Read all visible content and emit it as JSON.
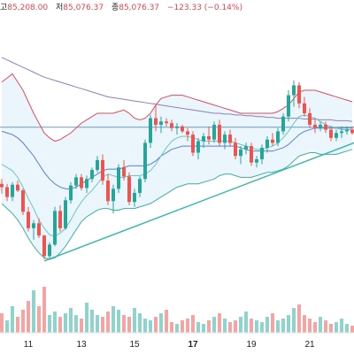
{
  "header": {
    "high_label": "고",
    "high_value": "85,208.00",
    "low_label": "저",
    "low_value": "85,076.37",
    "close_label": "종",
    "close_value": "85,076.37",
    "change": "−123.33 (−0.14%)"
  },
  "colors": {
    "up": "#26a69a",
    "down": "#ef5350",
    "volume_up": "#8ed4cc",
    "volume_down": "#f5a4a4",
    "band_upper": "#e24a5b",
    "band_lower": "#3db0a0",
    "band_fill": "#e8f3fb",
    "ma_slow": "#8c7fbf",
    "ma_mid": "#5b7fd6",
    "ma_fast": "#6dc7b8",
    "trendline": "#3bb8b0",
    "horizontal_line": "#6b9ad6",
    "axis_text": "#222222"
  },
  "chart_data": {
    "type": "candlestick",
    "x_tick_labels": [
      "11",
      "13",
      "15",
      "17",
      "19",
      "21"
    ],
    "candles": [
      {
        "t": 0,
        "o": 176,
        "h": 182,
        "l": 164,
        "c": 172
      },
      {
        "t": 1,
        "o": 172,
        "h": 176,
        "l": 155,
        "c": 160
      },
      {
        "t": 2,
        "o": 160,
        "h": 178,
        "l": 155,
        "c": 175
      },
      {
        "t": 3,
        "o": 175,
        "h": 180,
        "l": 166,
        "c": 168
      },
      {
        "t": 4,
        "o": 168,
        "h": 170,
        "l": 138,
        "c": 142
      },
      {
        "t": 5,
        "o": 142,
        "h": 148,
        "l": 118,
        "c": 122
      },
      {
        "t": 6,
        "o": 122,
        "h": 132,
        "l": 108,
        "c": 128
      },
      {
        "t": 7,
        "o": 128,
        "h": 134,
        "l": 110,
        "c": 113
      },
      {
        "t": 8,
        "o": 113,
        "h": 114,
        "l": 84,
        "c": 88
      },
      {
        "t": 9,
        "o": 88,
        "h": 105,
        "l": 85,
        "c": 102
      },
      {
        "t": 10,
        "o": 102,
        "h": 148,
        "l": 100,
        "c": 143
      },
      {
        "t": 11,
        "o": 143,
        "h": 150,
        "l": 118,
        "c": 122
      },
      {
        "t": 12,
        "o": 122,
        "h": 160,
        "l": 120,
        "c": 156
      },
      {
        "t": 13,
        "o": 156,
        "h": 178,
        "l": 152,
        "c": 174
      },
      {
        "t": 14,
        "o": 174,
        "h": 188,
        "l": 170,
        "c": 184
      },
      {
        "t": 15,
        "o": 184,
        "h": 188,
        "l": 168,
        "c": 171
      },
      {
        "t": 16,
        "o": 171,
        "h": 186,
        "l": 165,
        "c": 182
      },
      {
        "t": 17,
        "o": 182,
        "h": 196,
        "l": 178,
        "c": 193
      },
      {
        "t": 18,
        "o": 193,
        "h": 210,
        "l": 190,
        "c": 205
      },
      {
        "t": 19,
        "o": 205,
        "h": 212,
        "l": 175,
        "c": 180
      },
      {
        "t": 20,
        "o": 180,
        "h": 188,
        "l": 150,
        "c": 155
      },
      {
        "t": 21,
        "o": 155,
        "h": 175,
        "l": 140,
        "c": 170
      },
      {
        "t": 22,
        "o": 170,
        "h": 200,
        "l": 165,
        "c": 196
      },
      {
        "t": 23,
        "o": 196,
        "h": 205,
        "l": 180,
        "c": 185
      },
      {
        "t": 24,
        "o": 185,
        "h": 190,
        "l": 150,
        "c": 154
      },
      {
        "t": 25,
        "o": 154,
        "h": 170,
        "l": 148,
        "c": 165
      },
      {
        "t": 26,
        "o": 165,
        "h": 185,
        "l": 160,
        "c": 182
      },
      {
        "t": 27,
        "o": 182,
        "h": 230,
        "l": 178,
        "c": 226
      },
      {
        "t": 28,
        "o": 226,
        "h": 260,
        "l": 220,
        "c": 256
      },
      {
        "t": 29,
        "o": 256,
        "h": 272,
        "l": 240,
        "c": 248
      },
      {
        "t": 30,
        "o": 248,
        "h": 258,
        "l": 238,
        "c": 252
      },
      {
        "t": 31,
        "o": 252,
        "h": 256,
        "l": 246,
        "c": 250
      },
      {
        "t": 32,
        "o": 250,
        "h": 254,
        "l": 240,
        "c": 244
      },
      {
        "t": 33,
        "o": 244,
        "h": 250,
        "l": 236,
        "c": 246
      },
      {
        "t": 34,
        "o": 246,
        "h": 248,
        "l": 238,
        "c": 240
      },
      {
        "t": 35,
        "o": 240,
        "h": 244,
        "l": 228,
        "c": 236
      },
      {
        "t": 36,
        "o": 236,
        "h": 240,
        "l": 210,
        "c": 214
      },
      {
        "t": 37,
        "o": 214,
        "h": 232,
        "l": 206,
        "c": 228
      },
      {
        "t": 38,
        "o": 228,
        "h": 238,
        "l": 220,
        "c": 234
      },
      {
        "t": 39,
        "o": 234,
        "h": 246,
        "l": 224,
        "c": 230
      },
      {
        "t": 40,
        "o": 230,
        "h": 252,
        "l": 226,
        "c": 248
      },
      {
        "t": 41,
        "o": 248,
        "h": 254,
        "l": 222,
        "c": 226
      },
      {
        "t": 42,
        "o": 226,
        "h": 240,
        "l": 218,
        "c": 236
      },
      {
        "t": 43,
        "o": 236,
        "h": 242,
        "l": 222,
        "c": 226
      },
      {
        "t": 44,
        "o": 226,
        "h": 232,
        "l": 206,
        "c": 210
      },
      {
        "t": 45,
        "o": 210,
        "h": 222,
        "l": 200,
        "c": 218
      },
      {
        "t": 46,
        "o": 218,
        "h": 226,
        "l": 212,
        "c": 222
      },
      {
        "t": 47,
        "o": 222,
        "h": 226,
        "l": 198,
        "c": 202
      },
      {
        "t": 48,
        "o": 202,
        "h": 210,
        "l": 196,
        "c": 206
      },
      {
        "t": 49,
        "o": 206,
        "h": 224,
        "l": 200,
        "c": 220
      },
      {
        "t": 50,
        "o": 220,
        "h": 234,
        "l": 214,
        "c": 230
      },
      {
        "t": 51,
        "o": 230,
        "h": 238,
        "l": 222,
        "c": 226
      },
      {
        "t": 52,
        "o": 226,
        "h": 244,
        "l": 222,
        "c": 240
      },
      {
        "t": 53,
        "o": 240,
        "h": 262,
        "l": 236,
        "c": 258
      },
      {
        "t": 54,
        "o": 258,
        "h": 290,
        "l": 252,
        "c": 284
      },
      {
        "t": 55,
        "o": 284,
        "h": 302,
        "l": 270,
        "c": 296
      },
      {
        "t": 56,
        "o": 296,
        "h": 300,
        "l": 268,
        "c": 274
      },
      {
        "t": 57,
        "o": 274,
        "h": 282,
        "l": 258,
        "c": 262
      },
      {
        "t": 58,
        "o": 262,
        "h": 268,
        "l": 244,
        "c": 248
      },
      {
        "t": 59,
        "o": 248,
        "h": 256,
        "l": 238,
        "c": 244
      },
      {
        "t": 60,
        "o": 244,
        "h": 252,
        "l": 240,
        "c": 248
      },
      {
        "t": 61,
        "o": 248,
        "h": 252,
        "l": 238,
        "c": 242
      },
      {
        "t": 62,
        "o": 242,
        "h": 246,
        "l": 228,
        "c": 232
      },
      {
        "t": 63,
        "o": 232,
        "h": 242,
        "l": 228,
        "c": 238
      },
      {
        "t": 64,
        "o": 238,
        "h": 246,
        "l": 232,
        "c": 240
      },
      {
        "t": 65,
        "o": 240,
        "h": 246,
        "l": 236,
        "c": 242
      },
      {
        "t": 66,
        "o": 242,
        "h": 246,
        "l": 236,
        "c": 238
      }
    ],
    "volume": [
      22,
      14,
      30,
      18,
      26,
      36,
      48,
      30,
      52,
      20,
      24,
      18,
      22,
      28,
      20,
      16,
      34,
      26,
      20,
      18,
      24,
      30,
      26,
      20,
      18,
      28,
      22,
      16,
      14,
      18,
      22,
      26,
      12,
      10,
      14,
      16,
      20,
      12,
      10,
      14,
      18,
      22,
      16,
      12,
      14,
      18,
      24,
      16,
      14,
      12,
      18,
      22,
      14,
      16,
      20,
      28,
      32,
      20,
      16,
      12,
      18,
      14,
      10,
      12,
      16,
      10,
      8
    ],
    "volume_up": [
      false,
      true,
      true,
      false,
      false,
      false,
      true,
      false,
      false,
      true,
      true,
      false,
      true,
      true,
      true,
      false,
      true,
      true,
      true,
      false,
      false,
      true,
      true,
      false,
      false,
      true,
      true,
      true,
      true,
      false,
      true,
      false,
      false,
      true,
      false,
      false,
      false,
      true,
      true,
      false,
      true,
      false,
      true,
      false,
      false,
      true,
      true,
      false,
      true,
      true,
      true,
      false,
      true,
      true,
      true,
      true,
      false,
      false,
      false,
      false,
      true,
      false,
      false,
      true,
      true,
      true,
      false
    ],
    "bollinger_upper": [
      300,
      305,
      310,
      300,
      290,
      276,
      262,
      250,
      238,
      232,
      228,
      230,
      234,
      238,
      244,
      250,
      254,
      258,
      262,
      262,
      262,
      262,
      264,
      266,
      262,
      256,
      254,
      256,
      262,
      272,
      280,
      282,
      284,
      284,
      284,
      282,
      280,
      278,
      276,
      274,
      272,
      270,
      268,
      266,
      264,
      262,
      262,
      262,
      262,
      262,
      262,
      262,
      264,
      268,
      272,
      280,
      288,
      290,
      290,
      290,
      288,
      286,
      284,
      282,
      280,
      278,
      276
    ],
    "bollinger_lower": [
      152,
      146,
      140,
      132,
      122,
      110,
      100,
      92,
      86,
      84,
      86,
      92,
      100,
      110,
      120,
      130,
      136,
      140,
      144,
      146,
      146,
      144,
      144,
      146,
      146,
      146,
      148,
      150,
      152,
      156,
      160,
      164,
      168,
      172,
      174,
      176,
      176,
      176,
      178,
      180,
      182,
      186,
      188,
      188,
      186,
      184,
      184,
      184,
      186,
      188,
      190,
      190,
      192,
      194,
      198,
      204,
      210,
      212,
      214,
      214,
      212,
      212,
      212,
      212,
      214,
      216,
      218
    ],
    "ma_slow": [
      330,
      327,
      324,
      321,
      318,
      315,
      312,
      309,
      306,
      304,
      302,
      300,
      298,
      296,
      294,
      292,
      290,
      288,
      286,
      284,
      282,
      281,
      280,
      279,
      278,
      277,
      276,
      275,
      274,
      273,
      272,
      271,
      270,
      269,
      268,
      267,
      266,
      265,
      264,
      263,
      262,
      262,
      261,
      261,
      260,
      260,
      259,
      259,
      258,
      258,
      257,
      257,
      256,
      256,
      256,
      256,
      256,
      255,
      255,
      255,
      254,
      254,
      254,
      253,
      253,
      253,
      252
    ],
    "ma_mid": [
      240,
      238,
      236,
      232,
      226,
      218,
      210,
      200,
      190,
      182,
      176,
      172,
      170,
      170,
      172,
      176,
      180,
      184,
      188,
      192,
      194,
      194,
      194,
      196,
      198,
      198,
      198,
      198,
      200,
      204,
      210,
      214,
      218,
      220,
      222,
      222,
      222,
      222,
      222,
      222,
      222,
      222,
      222,
      222,
      222,
      220,
      218,
      216,
      216,
      216,
      216,
      216,
      218,
      220,
      224,
      230,
      236,
      240,
      242,
      244,
      244,
      244,
      244,
      244,
      244,
      244,
      244
    ],
    "ma_fast": [
      200,
      196,
      192,
      184,
      172,
      158,
      146,
      132,
      122,
      114,
      112,
      116,
      122,
      132,
      144,
      154,
      162,
      168,
      176,
      184,
      188,
      186,
      184,
      184,
      186,
      186,
      186,
      188,
      192,
      200,
      210,
      220,
      228,
      232,
      234,
      234,
      232,
      230,
      228,
      228,
      228,
      228,
      228,
      228,
      226,
      224,
      222,
      220,
      218,
      218,
      220,
      222,
      226,
      232,
      240,
      250,
      258,
      260,
      258,
      256,
      252,
      248,
      246,
      244,
      242,
      242,
      242
    ],
    "horizontal_level": 245,
    "trendline": {
      "t_start": 8,
      "v_start": 82,
      "t_end": 70,
      "v_end": 235
    },
    "y_visible_range": [
      55,
      400
    ],
    "volume_max": 60
  }
}
